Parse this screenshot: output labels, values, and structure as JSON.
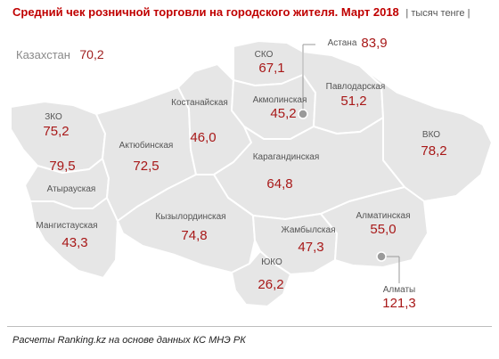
{
  "title": "Средний чек розничной торговли на городского жителя. Март 2018",
  "unit": "| тысяч тенге |",
  "country": {
    "label": "Казахстан",
    "value": "70,2"
  },
  "regions": [
    {
      "id": "sko",
      "name": "СКО",
      "value": "67,1"
    },
    {
      "id": "astana",
      "name": "Астана",
      "value": "83,9"
    },
    {
      "id": "akmola",
      "name": "Акмолинская",
      "value": "45,2"
    },
    {
      "id": "pavlodar",
      "name": "Павлодарская",
      "value": "51,2"
    },
    {
      "id": "kostanay",
      "name": "Костанайская",
      "value": "46,0"
    },
    {
      "id": "zko",
      "name": "ЗКО",
      "value": "75,2"
    },
    {
      "id": "atyrau",
      "name": "Атырауская",
      "value": "79,5"
    },
    {
      "id": "aktobe",
      "name": "Актюбинская",
      "value": "72,5"
    },
    {
      "id": "vko",
      "name": "ВКО",
      "value": "78,2"
    },
    {
      "id": "karaganda",
      "name": "Карагандинская",
      "value": "64,8"
    },
    {
      "id": "mangistau",
      "name": "Мангистауская",
      "value": "43,3"
    },
    {
      "id": "kyzylorda",
      "name": "Кызылординская",
      "value": "74,8"
    },
    {
      "id": "zhambyl",
      "name": "Жамбылская",
      "value": "47,3"
    },
    {
      "id": "almaty_reg",
      "name": "Алматинская",
      "value": "55,0"
    },
    {
      "id": "yuko",
      "name": "ЮКО",
      "value": "26,2"
    },
    {
      "id": "almaty",
      "name": "Алматы",
      "value": "121,3"
    }
  ],
  "source": "Расчеты Ranking.kz на основе данных КС МНЭ РК",
  "colors": {
    "region_fill": "#e6e6e6",
    "border": "#ffffff",
    "value": "#a81818",
    "title": "#c00000",
    "marker": "#9a9a9a"
  }
}
